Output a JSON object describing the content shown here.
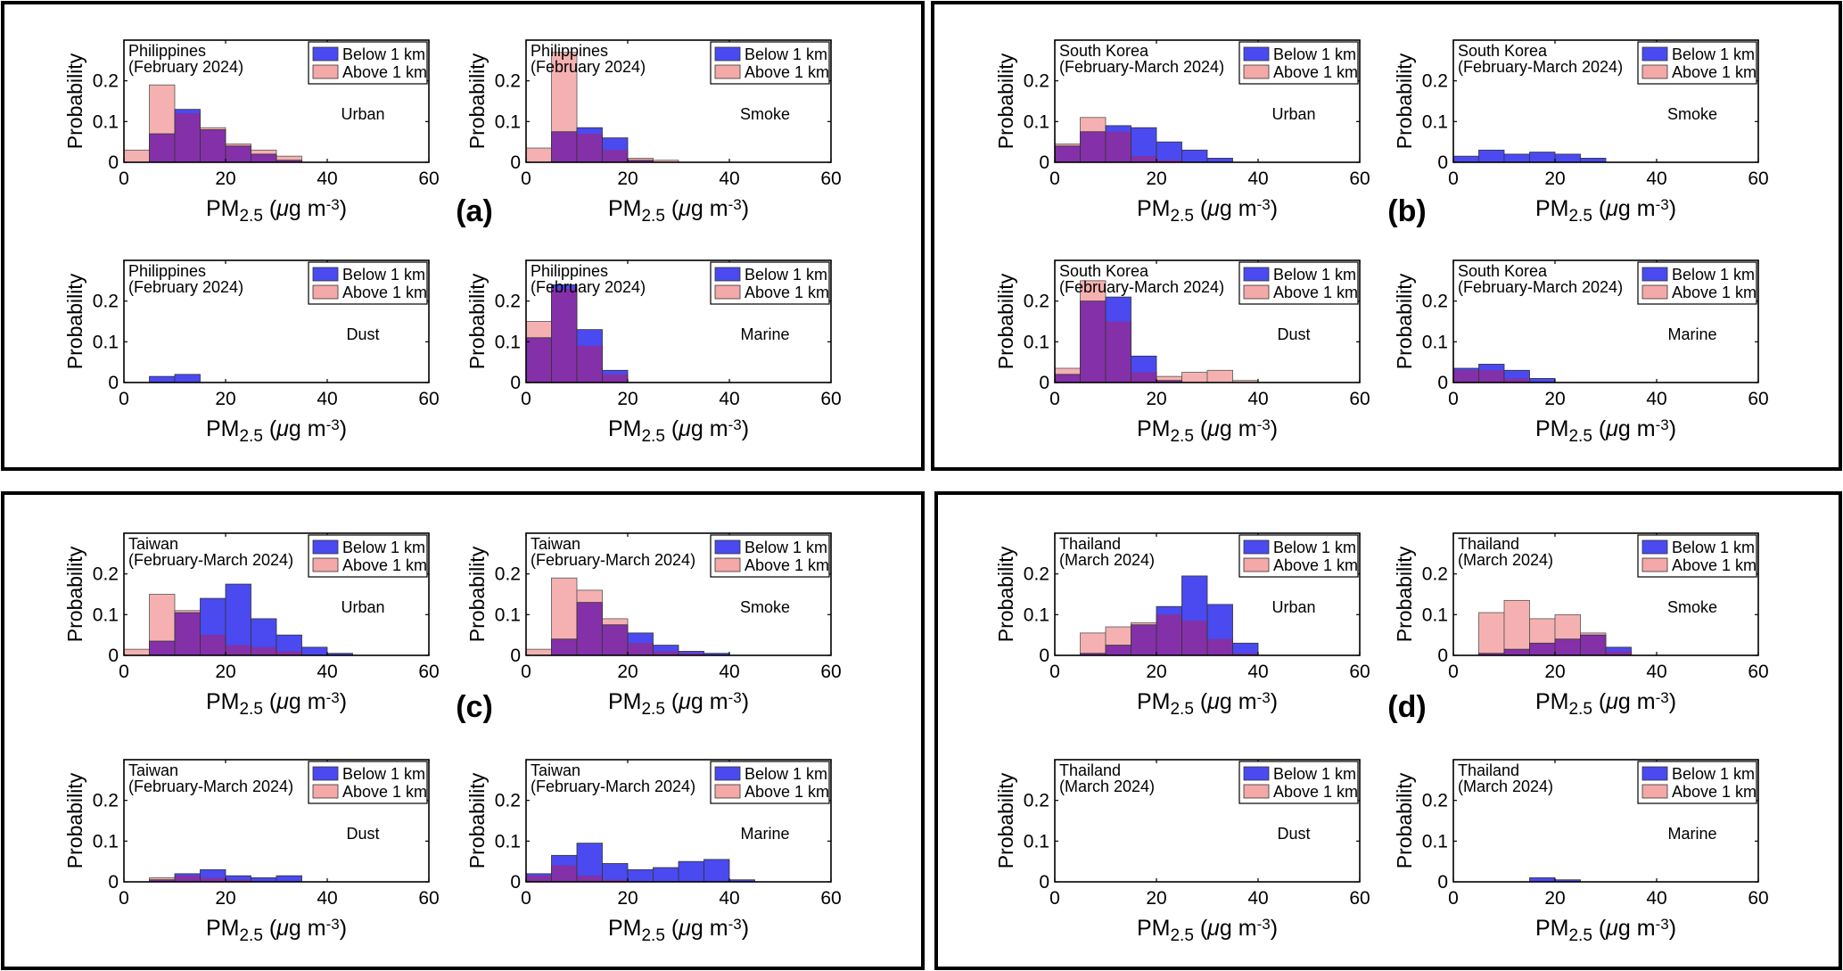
{
  "colors": {
    "below": "#4a4af0",
    "above": "#f4a8a8",
    "overlap": "#8430a8",
    "frame": "#000000"
  },
  "legend": {
    "below": "Below 1 km",
    "above": "Above 1 km"
  },
  "axis_labels": {
    "y": "Probability",
    "x_main": "PM",
    "x_sub": "2.5",
    "x_unit_pre": " (",
    "x_mu": "μ",
    "x_unit_mid": "g m",
    "x_exp": "-3",
    "x_unit_post": ")"
  },
  "x_ticks": [
    "0",
    "20",
    "40",
    "60"
  ],
  "y_ticks": [
    "0",
    "0.1",
    "0.2"
  ],
  "chart_data": [
    {
      "group": "(a)",
      "country": "Philippines",
      "period": "(February 2024)",
      "panels": [
        {
          "type": "bar",
          "title": "Urban",
          "xlim": [
            0,
            60
          ],
          "ylim": [
            0,
            0.3
          ],
          "bin_edges": [
            0,
            5,
            10,
            15,
            20,
            25,
            30,
            35,
            40,
            45,
            50,
            55,
            60
          ],
          "series": [
            {
              "name": "Below 1 km",
              "values": [
                0,
                0.07,
                0.13,
                0.08,
                0.04,
                0.02,
                0.005,
                0,
                0,
                0,
                0,
                0
              ]
            },
            {
              "name": "Above 1 km",
              "values": [
                0.03,
                0.19,
                0.12,
                0.085,
                0.045,
                0.03,
                0.015,
                0,
                0,
                0,
                0,
                0
              ]
            }
          ]
        },
        {
          "type": "bar",
          "title": "Smoke",
          "xlim": [
            0,
            60
          ],
          "ylim": [
            0,
            0.3
          ],
          "bin_edges": [
            0,
            5,
            10,
            15,
            20,
            25,
            30,
            35,
            40,
            45,
            50,
            55,
            60
          ],
          "series": [
            {
              "name": "Below 1 km",
              "values": [
                0,
                0.075,
                0.085,
                0.06,
                0.005,
                0,
                0,
                0,
                0,
                0,
                0,
                0
              ]
            },
            {
              "name": "Above 1 km",
              "values": [
                0.035,
                0.27,
                0.07,
                0.03,
                0.01,
                0.005,
                0,
                0,
                0,
                0,
                0,
                0
              ]
            }
          ]
        },
        {
          "type": "bar",
          "title": "Dust",
          "xlim": [
            0,
            60
          ],
          "ylim": [
            0,
            0.3
          ],
          "bin_edges": [
            0,
            5,
            10,
            15,
            20,
            25,
            30,
            35,
            40,
            45,
            50,
            55,
            60
          ],
          "series": [
            {
              "name": "Below 1 km",
              "values": [
                0,
                0.015,
                0.02,
                0,
                0,
                0,
                0,
                0,
                0,
                0,
                0,
                0
              ]
            },
            {
              "name": "Above 1 km",
              "values": [
                0,
                0,
                0,
                0,
                0,
                0,
                0,
                0,
                0,
                0,
                0,
                0
              ]
            }
          ]
        },
        {
          "type": "bar",
          "title": "Marine",
          "xlim": [
            0,
            60
          ],
          "ylim": [
            0,
            0.3
          ],
          "bin_edges": [
            0,
            5,
            10,
            15,
            20,
            25,
            30,
            35,
            40,
            45,
            50,
            55,
            60
          ],
          "series": [
            {
              "name": "Below 1 km",
              "values": [
                0.11,
                0.24,
                0.13,
                0.03,
                0,
                0,
                0,
                0,
                0,
                0,
                0,
                0
              ]
            },
            {
              "name": "Above 1 km",
              "values": [
                0.15,
                0.23,
                0.09,
                0.02,
                0,
                0,
                0,
                0,
                0,
                0,
                0,
                0
              ]
            }
          ]
        }
      ]
    },
    {
      "group": "(b)",
      "country": "South Korea",
      "period": "(February-March 2024)",
      "panels": [
        {
          "type": "bar",
          "title": "Urban",
          "xlim": [
            0,
            60
          ],
          "ylim": [
            0,
            0.3
          ],
          "bin_edges": [
            0,
            5,
            10,
            15,
            20,
            25,
            30,
            35,
            40,
            45,
            50,
            55,
            60
          ],
          "series": [
            {
              "name": "Below 1 km",
              "values": [
                0.04,
                0.075,
                0.09,
                0.085,
                0.05,
                0.03,
                0.01,
                0,
                0,
                0,
                0,
                0
              ]
            },
            {
              "name": "Above 1 km",
              "values": [
                0.045,
                0.11,
                0.075,
                0.015,
                0.005,
                0,
                0,
                0,
                0,
                0,
                0,
                0
              ]
            }
          ]
        },
        {
          "type": "bar",
          "title": "Smoke",
          "xlim": [
            0,
            60
          ],
          "ylim": [
            0,
            0.3
          ],
          "bin_edges": [
            0,
            5,
            10,
            15,
            20,
            25,
            30,
            35,
            40,
            45,
            50,
            55,
            60
          ],
          "series": [
            {
              "name": "Below 1 km",
              "values": [
                0.015,
                0.03,
                0.02,
                0.025,
                0.02,
                0.01,
                0,
                0,
                0,
                0,
                0,
                0
              ]
            },
            {
              "name": "Above 1 km",
              "values": [
                0,
                0,
                0,
                0,
                0,
                0,
                0,
                0,
                0,
                0,
                0,
                0
              ]
            }
          ]
        },
        {
          "type": "bar",
          "title": "Dust",
          "xlim": [
            0,
            60
          ],
          "ylim": [
            0,
            0.3
          ],
          "bin_edges": [
            0,
            5,
            10,
            15,
            20,
            25,
            30,
            35,
            40,
            45,
            50,
            55,
            60
          ],
          "series": [
            {
              "name": "Below 1 km",
              "values": [
                0.02,
                0.2,
                0.21,
                0.065,
                0.005,
                0,
                0,
                0,
                0,
                0,
                0,
                0
              ]
            },
            {
              "name": "Above 1 km",
              "values": [
                0.035,
                0.25,
                0.15,
                0.025,
                0.015,
                0.025,
                0.03,
                0.005,
                0,
                0,
                0,
                0
              ]
            }
          ]
        },
        {
          "type": "bar",
          "title": "Marine",
          "xlim": [
            0,
            60
          ],
          "ylim": [
            0,
            0.3
          ],
          "bin_edges": [
            0,
            5,
            10,
            15,
            20,
            25,
            30,
            35,
            40,
            45,
            50,
            55,
            60
          ],
          "series": [
            {
              "name": "Below 1 km",
              "values": [
                0.035,
                0.045,
                0.03,
                0.01,
                0,
                0,
                0,
                0,
                0,
                0,
                0,
                0
              ]
            },
            {
              "name": "Above 1 km",
              "values": [
                0.03,
                0.03,
                0.01,
                0,
                0,
                0,
                0,
                0,
                0,
                0,
                0,
                0
              ]
            }
          ]
        }
      ]
    },
    {
      "group": "(c)",
      "country": "Taiwan",
      "period": "(February-March 2024)",
      "panels": [
        {
          "type": "bar",
          "title": "Urban",
          "xlim": [
            0,
            60
          ],
          "ylim": [
            0,
            0.3
          ],
          "bin_edges": [
            0,
            5,
            10,
            15,
            20,
            25,
            30,
            35,
            40,
            45,
            50,
            55,
            60
          ],
          "series": [
            {
              "name": "Below 1 km",
              "values": [
                0,
                0.035,
                0.105,
                0.14,
                0.175,
                0.09,
                0.05,
                0.02,
                0.005,
                0,
                0,
                0
              ]
            },
            {
              "name": "Above 1 km",
              "values": [
                0.015,
                0.15,
                0.11,
                0.05,
                0.025,
                0.02,
                0.01,
                0,
                0,
                0,
                0,
                0
              ]
            }
          ]
        },
        {
          "type": "bar",
          "title": "Smoke",
          "xlim": [
            0,
            60
          ],
          "ylim": [
            0,
            0.3
          ],
          "bin_edges": [
            0,
            5,
            10,
            15,
            20,
            25,
            30,
            35,
            40,
            45,
            50,
            55,
            60
          ],
          "series": [
            {
              "name": "Below 1 km",
              "values": [
                0,
                0.04,
                0.13,
                0.075,
                0.055,
                0.025,
                0.01,
                0.005,
                0,
                0,
                0,
                0
              ]
            },
            {
              "name": "Above 1 km",
              "values": [
                0.015,
                0.19,
                0.16,
                0.09,
                0.03,
                0.01,
                0.005,
                0,
                0,
                0,
                0,
                0
              ]
            }
          ]
        },
        {
          "type": "bar",
          "title": "Dust",
          "xlim": [
            0,
            60
          ],
          "ylim": [
            0,
            0.3
          ],
          "bin_edges": [
            0,
            5,
            10,
            15,
            20,
            25,
            30,
            35,
            40,
            45,
            50,
            55,
            60
          ],
          "series": [
            {
              "name": "Below 1 km",
              "values": [
                0,
                0.005,
                0.02,
                0.03,
                0.015,
                0.01,
                0.015,
                0,
                0,
                0,
                0,
                0
              ]
            },
            {
              "name": "Above 1 km",
              "values": [
                0,
                0.01,
                0.015,
                0.01,
                0.005,
                0,
                0,
                0,
                0,
                0,
                0,
                0
              ]
            }
          ]
        },
        {
          "type": "bar",
          "title": "Marine",
          "xlim": [
            0,
            60
          ],
          "ylim": [
            0,
            0.3
          ],
          "bin_edges": [
            0,
            5,
            10,
            15,
            20,
            25,
            30,
            35,
            40,
            45,
            50,
            55,
            60
          ],
          "series": [
            {
              "name": "Below 1 km",
              "values": [
                0.02,
                0.065,
                0.095,
                0.045,
                0.03,
                0.035,
                0.05,
                0.055,
                0.005,
                0,
                0,
                0
              ]
            },
            {
              "name": "Above 1 km",
              "values": [
                0.015,
                0.04,
                0.015,
                0.005,
                0,
                0,
                0,
                0,
                0,
                0,
                0,
                0
              ]
            }
          ]
        }
      ]
    },
    {
      "group": "(d)",
      "country": "Thailand",
      "period": "(March 2024)",
      "panels": [
        {
          "type": "bar",
          "title": "Urban",
          "xlim": [
            0,
            60
          ],
          "ylim": [
            0,
            0.3
          ],
          "bin_edges": [
            0,
            5,
            10,
            15,
            20,
            25,
            30,
            35,
            40,
            45,
            50,
            55,
            60
          ],
          "series": [
            {
              "name": "Below 1 km",
              "values": [
                0,
                0.005,
                0.025,
                0.075,
                0.12,
                0.195,
                0.125,
                0.03,
                0,
                0,
                0,
                0
              ]
            },
            {
              "name": "Above 1 km",
              "values": [
                0,
                0.055,
                0.07,
                0.08,
                0.1,
                0.085,
                0.04,
                0.005,
                0,
                0,
                0,
                0
              ]
            }
          ]
        },
        {
          "type": "bar",
          "title": "Smoke",
          "xlim": [
            0,
            60
          ],
          "ylim": [
            0,
            0.3
          ],
          "bin_edges": [
            0,
            5,
            10,
            15,
            20,
            25,
            30,
            35,
            40,
            45,
            50,
            55,
            60
          ],
          "series": [
            {
              "name": "Below 1 km",
              "values": [
                0,
                0.005,
                0.015,
                0.03,
                0.04,
                0.05,
                0.02,
                0,
                0,
                0,
                0,
                0
              ]
            },
            {
              "name": "Above 1 km",
              "values": [
                0,
                0.105,
                0.135,
                0.09,
                0.1,
                0.055,
                0.01,
                0,
                0,
                0,
                0,
                0
              ]
            }
          ]
        },
        {
          "type": "bar",
          "title": "Dust",
          "xlim": [
            0,
            60
          ],
          "ylim": [
            0,
            0.3
          ],
          "bin_edges": [
            0,
            5,
            10,
            15,
            20,
            25,
            30,
            35,
            40,
            45,
            50,
            55,
            60
          ],
          "series": [
            {
              "name": "Below 1 km",
              "values": [
                0,
                0,
                0,
                0,
                0,
                0,
                0,
                0,
                0,
                0,
                0,
                0
              ]
            },
            {
              "name": "Above 1 km",
              "values": [
                0,
                0,
                0,
                0,
                0,
                0,
                0,
                0,
                0,
                0,
                0,
                0
              ]
            }
          ]
        },
        {
          "type": "bar",
          "title": "Marine",
          "xlim": [
            0,
            60
          ],
          "ylim": [
            0,
            0.3
          ],
          "bin_edges": [
            0,
            5,
            10,
            15,
            20,
            25,
            30,
            35,
            40,
            45,
            50,
            55,
            60
          ],
          "series": [
            {
              "name": "Below 1 km",
              "values": [
                0,
                0,
                0,
                0.01,
                0.005,
                0,
                0,
                0,
                0,
                0,
                0,
                0
              ]
            },
            {
              "name": "Above 1 km",
              "values": [
                0,
                0,
                0,
                0,
                0,
                0,
                0,
                0,
                0,
                0,
                0,
                0
              ]
            }
          ]
        }
      ]
    }
  ]
}
